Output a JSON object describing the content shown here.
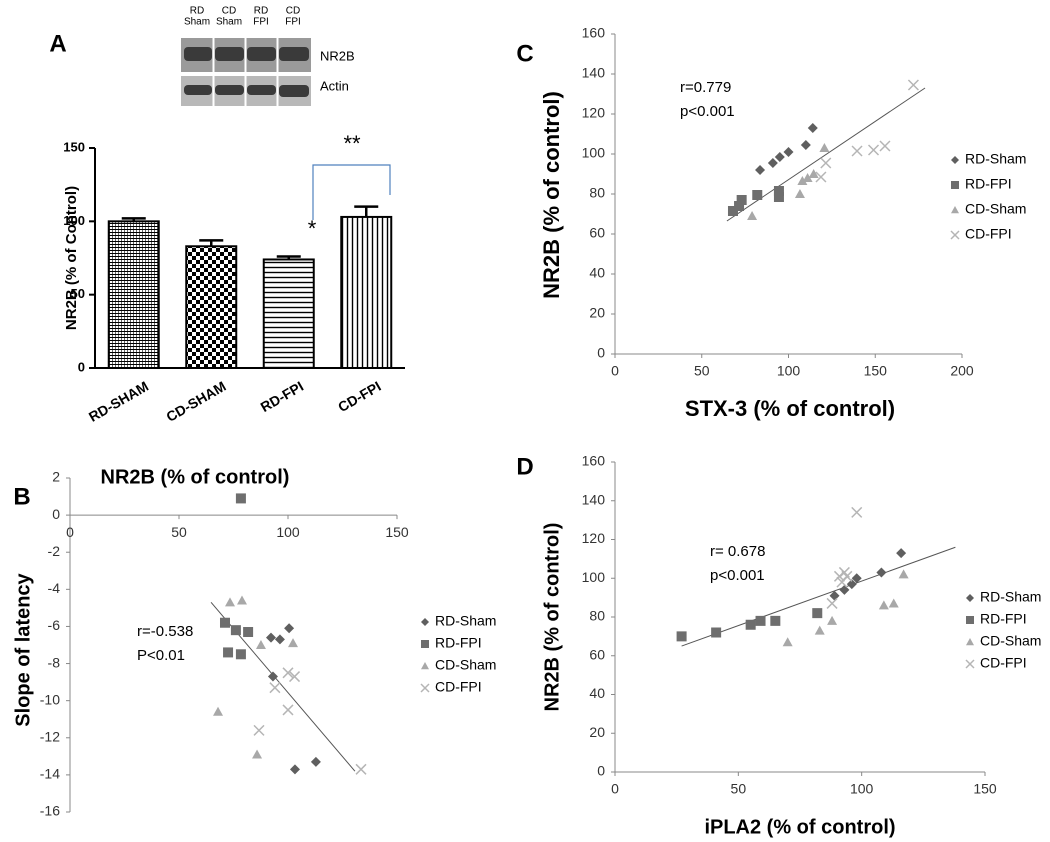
{
  "figure": {
    "blot": {
      "lanes": [
        [
          "RD",
          "Sham"
        ],
        [
          "CD",
          "Sham"
        ],
        [
          "RD",
          "FPI"
        ],
        [
          "CD",
          "FPI"
        ]
      ],
      "bands": [
        "NR2B",
        "Actin"
      ]
    }
  },
  "chart_data": [
    {
      "type": "bar",
      "panel": "A",
      "ylabel": "NR2B (% of Control)",
      "categories": [
        "RD-SHAM",
        "CD-SHAM",
        "RD-FPI",
        "CD-FPI"
      ],
      "values": [
        100,
        83,
        74,
        103
      ],
      "errors": [
        2,
        4,
        2,
        7
      ],
      "ylim": [
        0,
        150
      ],
      "yticks": [
        0,
        50,
        100,
        150
      ],
      "annotations": [
        "*",
        "**"
      ]
    },
    {
      "type": "scatter",
      "panel": "B",
      "title": "NR2B (% of control)",
      "ylabel": "Slope of latency",
      "xlim": [
        0,
        150
      ],
      "xticks": [
        0,
        50,
        100,
        150
      ],
      "ylim": [
        -16,
        2
      ],
      "yticks": [
        -16,
        -14,
        -12,
        -10,
        -8,
        -6,
        -4,
        -2,
        0,
        2
      ],
      "annotations": [
        "r=-0.538",
        "P<0.01"
      ],
      "series": [
        {
          "name": "RD-Sham",
          "marker": "diamond",
          "color": "#5f5f5f",
          "x": [
            92.2,
            96.3,
            100.5,
            93.1,
            103.2,
            112.8
          ],
          "y": [
            -6.6,
            -6.7,
            -6.1,
            -8.7,
            -13.7,
            -13.3
          ]
        },
        {
          "name": "RD-FPI",
          "marker": "square",
          "color": "#6e6e6e",
          "x": [
            71.1,
            76.1,
            81.7,
            72.5,
            78.4,
            78.4
          ],
          "y": [
            -5.8,
            -6.2,
            -6.3,
            -7.4,
            -7.5,
            0.9
          ]
        },
        {
          "name": "CD-Sham",
          "marker": "triangle",
          "color": "#a8a8a8",
          "x": [
            73.4,
            78.9,
            87.6,
            102.3,
            67.9,
            85.8
          ],
          "y": [
            -4.7,
            -4.6,
            -7.0,
            -6.9,
            -10.6,
            -12.9
          ]
        },
        {
          "name": "CD-FPI",
          "marker": "x",
          "color": "#b5b5b5",
          "x": [
            94.0,
            100.0,
            103.0,
            100.0,
            86.7,
            133.5
          ],
          "y": [
            -9.3,
            -8.5,
            -8.7,
            -10.5,
            -11.6,
            -13.7
          ]
        }
      ],
      "trendline": {
        "x": [
          64.7,
          130.7
        ],
        "y": [
          -4.7,
          -13.8
        ]
      }
    },
    {
      "type": "scatter",
      "panel": "C",
      "xlabel": "STX-3 (% of control)",
      "ylabel": "NR2B (% of control)",
      "xlim": [
        0,
        200
      ],
      "xticks": [
        0,
        50,
        100,
        150,
        200
      ],
      "ylim": [
        0,
        160
      ],
      "yticks": [
        0,
        20,
        40,
        60,
        80,
        100,
        120,
        140,
        160
      ],
      "annotations": [
        "r=0.779",
        "p<0.001"
      ],
      "series": [
        {
          "name": "RD-Sham",
          "marker": "diamond",
          "color": "#5f5f5f",
          "x": [
            83.6,
            91,
            95,
            100,
            110,
            114
          ],
          "y": [
            92,
            95.5,
            98.5,
            101,
            104.5,
            113
          ]
        },
        {
          "name": "RD-FPI",
          "marker": "square",
          "color": "#6e6e6e",
          "x": [
            68,
            71.5,
            73,
            82,
            94.5,
            94.5
          ],
          "y": [
            71.5,
            74,
            77,
            79.5,
            81.5,
            78.5
          ]
        },
        {
          "name": "CD-Sham",
          "marker": "triangle",
          "color": "#a8a8a8",
          "x": [
            79,
            106.6,
            108,
            111,
            114.5,
            120.7
          ],
          "y": [
            69,
            80,
            86.5,
            88,
            90,
            103
          ]
        },
        {
          "name": "CD-FPI",
          "marker": "x",
          "color": "#b5b5b5",
          "x": [
            118.7,
            121.5,
            139.5,
            149,
            155.6,
            172
          ],
          "y": [
            88.5,
            95.5,
            101.5,
            102,
            104,
            134.5
          ]
        }
      ],
      "trendline": {
        "x": [
          64.5,
          178.7
        ],
        "y": [
          66.5,
          133
        ]
      }
    },
    {
      "type": "scatter",
      "panel": "D",
      "xlabel": "iPLA2 (% of control)",
      "ylabel": "NR2B (% of control)",
      "xlim": [
        0,
        150
      ],
      "xticks": [
        0,
        50,
        100,
        150
      ],
      "ylim": [
        0,
        160
      ],
      "yticks": [
        0,
        20,
        40,
        60,
        80,
        100,
        120,
        140,
        160
      ],
      "annotations": [
        "r= 0.678",
        "p<0.001"
      ],
      "series": [
        {
          "name": "RD-Sham",
          "marker": "diamond",
          "color": "#5f5f5f",
          "x": [
            89,
            93,
            96,
            98,
            108,
            116
          ],
          "y": [
            91,
            94,
            97,
            100,
            103,
            113
          ]
        },
        {
          "name": "RD-FPI",
          "marker": "square",
          "color": "#6e6e6e",
          "x": [
            27,
            41,
            55,
            59,
            65,
            82
          ],
          "y": [
            70,
            72,
            76,
            78,
            78,
            82
          ]
        },
        {
          "name": "CD-Sham",
          "marker": "triangle",
          "color": "#a8a8a8",
          "x": [
            70,
            83,
            88,
            109,
            113,
            117
          ],
          "y": [
            67,
            73,
            78,
            86,
            87,
            102
          ]
        },
        {
          "name": "CD-FPI",
          "marker": "x",
          "color": "#b5b5b5",
          "x": [
            88,
            91,
            92,
            93,
            94,
            98
          ],
          "y": [
            87,
            101,
            98,
            103,
            101,
            134
          ]
        }
      ],
      "trendline": {
        "x": [
          27,
          138
        ],
        "y": [
          65,
          116
        ]
      }
    }
  ]
}
